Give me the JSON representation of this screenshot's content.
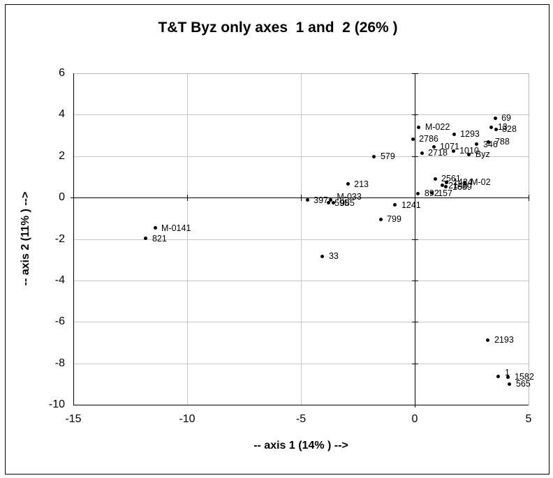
{
  "chart_data": {
    "type": "scatter",
    "title": "T&T Byz only axes  1 and  2 (26% )",
    "xlabel": "-- axis 1 (14% ) -->",
    "ylabel": "-- axis 2 (11% ) -->",
    "xlim": [
      -15,
      5
    ],
    "ylim": [
      -10,
      6
    ],
    "xticks": [
      -15,
      -10,
      -5,
      0,
      5
    ],
    "yticks": [
      6,
      4,
      2,
      0,
      -2,
      -4,
      -6,
      -8,
      -10
    ],
    "grid": true,
    "legend": false,
    "marker_color": "#000000",
    "grid_color": "#c6c6c6",
    "border_light_color": "#b8b8b8",
    "axis_color": "#000000",
    "points": [
      {
        "label": "69",
        "x": 3.53,
        "y": 3.84
      },
      {
        "label": "13",
        "x": 3.37,
        "y": 3.4
      },
      {
        "label": "828",
        "x": 3.56,
        "y": 3.29
      },
      {
        "label": "M-022",
        "x": 0.18,
        "y": 3.4
      },
      {
        "label": "1293",
        "x": 1.72,
        "y": 3.06
      },
      {
        "label": "2786",
        "x": -0.09,
        "y": 2.82
      },
      {
        "label": "788",
        "x": 3.25,
        "y": 2.69
      },
      {
        "label": "346",
        "x": 2.73,
        "y": 2.58
      },
      {
        "label": "1071",
        "x": 0.83,
        "y": 2.45
      },
      {
        "label": "1010",
        "x": 1.69,
        "y": 2.25
      },
      {
        "label": "Byz",
        "x": 2.39,
        "y": 2.08
      },
      {
        "label": "2718",
        "x": 0.31,
        "y": 2.15
      },
      {
        "label": "579",
        "x": -1.78,
        "y": 1.98
      },
      {
        "label": "2561",
        "x": 0.89,
        "y": 0.9
      },
      {
        "label": "1424",
        "x": 1.41,
        "y": 0.73
      },
      {
        "label": "M-02",
        "x": 2.18,
        "y": 0.73
      },
      {
        "label": "2148",
        "x": 1.2,
        "y": 0.59
      },
      {
        "label": "1689",
        "x": 1.38,
        "y": 0.52
      },
      {
        "label": "213",
        "x": -2.94,
        "y": 0.66
      },
      {
        "label": "892",
        "x": 0.15,
        "y": 0.19
      },
      {
        "label": "157",
        "x": 0.74,
        "y": 0.22
      },
      {
        "label": "397",
        "x": -4.72,
        "y": -0.12
      },
      {
        "label": "M-033",
        "x": -3.7,
        "y": -0.12,
        "dy": -5
      },
      {
        "label": "595",
        "x": -3.8,
        "y": -0.25
      },
      {
        "label": "985",
        "x": -3.56,
        "y": -0.25
      },
      {
        "label": "1241",
        "x": -0.86,
        "y": -0.35
      },
      {
        "label": "799",
        "x": -1.5,
        "y": -1.05
      },
      {
        "label": "M-0141",
        "x": -11.41,
        "y": -1.47
      },
      {
        "label": "821",
        "x": -11.81,
        "y": -1.98
      },
      {
        "label": "33",
        "x": -4.05,
        "y": -2.84
      },
      {
        "label": "2193",
        "x": 3.22,
        "y": -6.88
      },
      {
        "label": "1",
        "x": 3.68,
        "y": -8.63,
        "dy": -5
      },
      {
        "label": "1582",
        "x": 4.11,
        "y": -8.66
      },
      {
        "label": "565",
        "x": 4.17,
        "y": -9.0
      }
    ]
  }
}
